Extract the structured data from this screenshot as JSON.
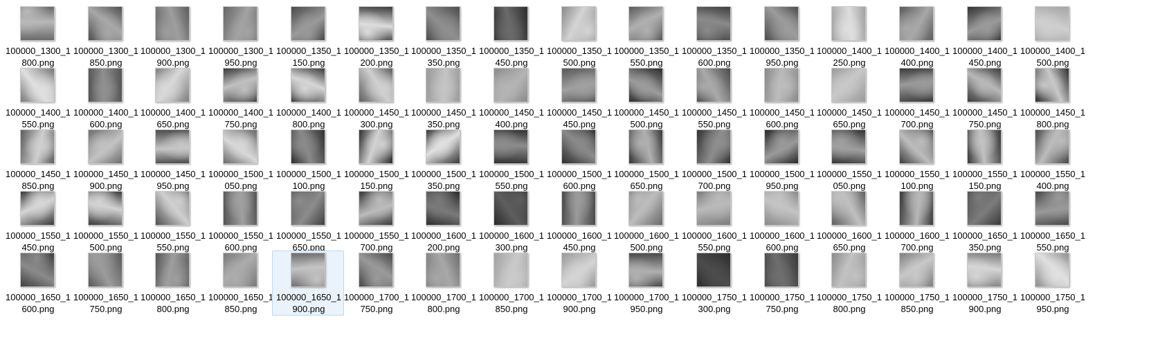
{
  "folder": {
    "view": "Large icons",
    "selected_file": "100000_1650_1900.png",
    "rows": [
      [
        {
          "line1": "100000_1300_1",
          "line2": "800.png",
          "icon": "image-thumbnail",
          "tone": [
            "#6a6a6a",
            "#b9b9b9"
          ]
        },
        {
          "line1": "100000_1300_1",
          "line2": "850.png",
          "icon": "image-thumbnail",
          "tone": [
            "#505050",
            "#a8a8a8"
          ]
        },
        {
          "line1": "100000_1300_1",
          "line2": "900.png",
          "icon": "image-thumbnail",
          "tone": [
            "#5c5c5c",
            "#9e9e9e"
          ]
        },
        {
          "line1": "100000_1300_1",
          "line2": "950.png",
          "icon": "image-thumbnail",
          "tone": [
            "#666666",
            "#a3a3a3"
          ]
        },
        {
          "line1": "100000_1350_1",
          "line2": "150.png",
          "icon": "image-thumbnail",
          "tone": [
            "#4a4a4a",
            "#9a9a9a"
          ]
        },
        {
          "line1": "100000_1350_1",
          "line2": "200.png",
          "icon": "image-thumbnail",
          "tone": [
            "#3c3c3c",
            "#dcdcdc"
          ]
        },
        {
          "line1": "100000_1350_1",
          "line2": "350.png",
          "icon": "image-thumbnail",
          "tone": [
            "#4d4d4d",
            "#8f8f8f"
          ]
        },
        {
          "line1": "100000_1350_1",
          "line2": "450.png",
          "icon": "image-thumbnail",
          "tone": [
            "#2e2e2e",
            "#6a6a6a"
          ]
        },
        {
          "line1": "100000_1350_1",
          "line2": "500.png",
          "icon": "image-thumbnail",
          "tone": [
            "#8a8a8a",
            "#d4d4d4"
          ]
        },
        {
          "line1": "100000_1350_1",
          "line2": "550.png",
          "icon": "image-thumbnail",
          "tone": [
            "#5a5a5a",
            "#b0b0b0"
          ]
        },
        {
          "line1": "100000_1350_1",
          "line2": "600.png",
          "icon": "image-thumbnail",
          "tone": [
            "#404040",
            "#8a8a8a"
          ]
        },
        {
          "line1": "100000_1350_1",
          "line2": "950.png",
          "icon": "image-thumbnail",
          "tone": [
            "#4e4e4e",
            "#9c9c9c"
          ]
        },
        {
          "line1": "100000_1400_1",
          "line2": "250.png",
          "icon": "image-thumbnail",
          "tone": [
            "#a0a0a0",
            "#dedede"
          ]
        },
        {
          "line1": "100000_1400_1",
          "line2": "400.png",
          "icon": "image-thumbnail",
          "tone": [
            "#5a5a5a",
            "#a8a8a8"
          ]
        },
        {
          "line1": "100000_1400_1",
          "line2": "450.png",
          "icon": "image-thumbnail",
          "tone": [
            "#333333",
            "#9a9a9a"
          ]
        },
        {
          "line1": "100000_1400_1",
          "line2": "500.png",
          "icon": "image-thumbnail",
          "tone": [
            "#a6a6a6",
            "#cfcfcf"
          ]
        }
      ],
      [
        {
          "line1": "100000_1400_1",
          "line2": "550.png",
          "icon": "image-thumbnail",
          "tone": [
            "#7a7a7a",
            "#e0e0e0"
          ]
        },
        {
          "line1": "100000_1400_1",
          "line2": "600.png",
          "icon": "image-thumbnail",
          "tone": [
            "#555555",
            "#909090"
          ]
        },
        {
          "line1": "100000_1400_1",
          "line2": "650.png",
          "icon": "image-thumbnail",
          "tone": [
            "#808080",
            "#d8d8d8"
          ]
        },
        {
          "line1": "100000_1400_1",
          "line2": "750.png",
          "icon": "image-thumbnail",
          "tone": [
            "#3a3a3a",
            "#c0c0c0"
          ]
        },
        {
          "line1": "100000_1400_1",
          "line2": "800.png",
          "icon": "image-thumbnail",
          "tone": [
            "#3e3e3e",
            "#d6d6d6"
          ]
        },
        {
          "line1": "100000_1450_1",
          "line2": "300.png",
          "icon": "image-thumbnail",
          "tone": [
            "#606060",
            "#d0d0d0"
          ]
        },
        {
          "line1": "100000_1450_1",
          "line2": "350.png",
          "icon": "image-thumbnail",
          "tone": [
            "#9a9a9a",
            "#c4c4c4"
          ]
        },
        {
          "line1": "100000_1450_1",
          "line2": "400.png",
          "icon": "image-thumbnail",
          "tone": [
            "#8c8c8c",
            "#b4b4b4"
          ]
        },
        {
          "line1": "100000_1450_1",
          "line2": "450.png",
          "icon": "image-thumbnail",
          "tone": [
            "#5a5a5a",
            "#a0a0a0"
          ]
        },
        {
          "line1": "100000_1450_1",
          "line2": "500.png",
          "icon": "image-thumbnail",
          "tone": [
            "#2c2c2c",
            "#9c9c9c"
          ]
        },
        {
          "line1": "100000_1450_1",
          "line2": "550.png",
          "icon": "image-thumbnail",
          "tone": [
            "#4a4a4a",
            "#aaaaaa"
          ]
        },
        {
          "line1": "100000_1450_1",
          "line2": "600.png",
          "icon": "image-thumbnail",
          "tone": [
            "#8a8a8a",
            "#bcbcbc"
          ]
        },
        {
          "line1": "100000_1450_1",
          "line2": "650.png",
          "icon": "image-thumbnail",
          "tone": [
            "#9a9a9a",
            "#c8c8c8"
          ]
        },
        {
          "line1": "100000_1450_1",
          "line2": "700.png",
          "icon": "image-thumbnail",
          "tone": [
            "#3a3a3a",
            "#9a9a9a"
          ]
        },
        {
          "line1": "100000_1450_1",
          "line2": "750.png",
          "icon": "image-thumbnail",
          "tone": [
            "#3c3c3c",
            "#b8b8b8"
          ]
        },
        {
          "line1": "100000_1450_1",
          "line2": "800.png",
          "icon": "image-thumbnail",
          "tone": [
            "#303030",
            "#c8c8c8"
          ]
        }
      ],
      [
        {
          "line1": "100000_1450_1",
          "line2": "850.png",
          "icon": "image-thumbnail",
          "tone": [
            "#5e5e5e",
            "#cfcfcf"
          ]
        },
        {
          "line1": "100000_1450_1",
          "line2": "900.png",
          "icon": "image-thumbnail",
          "tone": [
            "#6e6e6e",
            "#c2c2c2"
          ]
        },
        {
          "line1": "100000_1450_1",
          "line2": "950.png",
          "icon": "image-thumbnail",
          "tone": [
            "#4c4c4c",
            "#c6c6c6"
          ]
        },
        {
          "line1": "100000_1500_1",
          "line2": "050.png",
          "icon": "image-thumbnail",
          "tone": [
            "#6a6a6a",
            "#d8d8d8"
          ]
        },
        {
          "line1": "100000_1500_1",
          "line2": "100.png",
          "icon": "image-thumbnail",
          "tone": [
            "#303030",
            "#8a8a8a"
          ]
        },
        {
          "line1": "100000_1500_1",
          "line2": "150.png",
          "icon": "image-thumbnail",
          "tone": [
            "#2e2e2e",
            "#d2d2d2"
          ]
        },
        {
          "line1": "100000_1500_1",
          "line2": "350.png",
          "icon": "image-thumbnail",
          "tone": [
            "#3a3a3a",
            "#e0e0e0"
          ]
        },
        {
          "line1": "100000_1500_1",
          "line2": "550.png",
          "icon": "image-thumbnail",
          "tone": [
            "#333333",
            "#8c8c8c"
          ]
        },
        {
          "line1": "100000_1500_1",
          "line2": "600.png",
          "icon": "image-thumbnail",
          "tone": [
            "#303030",
            "#8a8a8a"
          ]
        },
        {
          "line1": "100000_1500_1",
          "line2": "650.png",
          "icon": "image-thumbnail",
          "tone": [
            "#3a3a3a",
            "#b0b0b0"
          ]
        },
        {
          "line1": "100000_1500_1",
          "line2": "700.png",
          "icon": "image-thumbnail",
          "tone": [
            "#333333",
            "#8e8e8e"
          ]
        },
        {
          "line1": "100000_1500_1",
          "line2": "950.png",
          "icon": "image-thumbnail",
          "tone": [
            "#2a2a2a",
            "#9a9a9a"
          ]
        },
        {
          "line1": "100000_1550_1",
          "line2": "050.png",
          "icon": "image-thumbnail",
          "tone": [
            "#363636",
            "#a0a0a0"
          ]
        },
        {
          "line1": "100000_1550_1",
          "line2": "100.png",
          "icon": "image-thumbnail",
          "tone": [
            "#3e3e3e",
            "#bdbdbd"
          ]
        },
        {
          "line1": "100000_1550_1",
          "line2": "150.png",
          "icon": "image-thumbnail",
          "tone": [
            "#383838",
            "#c2c2c2"
          ]
        },
        {
          "line1": "100000_1550_1",
          "line2": "400.png",
          "icon": "image-thumbnail",
          "tone": [
            "#4a4a4a",
            "#bcbcbc"
          ]
        }
      ],
      [
        {
          "line1": "100000_1550_1",
          "line2": "450.png",
          "icon": "image-thumbnail",
          "tone": [
            "#3a3a3a",
            "#d6d6d6"
          ]
        },
        {
          "line1": "100000_1550_1",
          "line2": "500.png",
          "icon": "image-thumbnail",
          "tone": [
            "#3c3c3c",
            "#d2d2d2"
          ]
        },
        {
          "line1": "100000_1550_1",
          "line2": "550.png",
          "icon": "image-thumbnail",
          "tone": [
            "#505050",
            "#d0d0d0"
          ]
        },
        {
          "line1": "100000_1550_1",
          "line2": "600.png",
          "icon": "image-thumbnail",
          "tone": [
            "#555555",
            "#a0a0a0"
          ]
        },
        {
          "line1": "100000_1550_1",
          "line2": "650.png",
          "icon": "image-thumbnail",
          "tone": [
            "#404040",
            "#8c8c8c"
          ]
        },
        {
          "line1": "100000_1550_1",
          "line2": "700.png",
          "icon": "image-thumbnail",
          "tone": [
            "#3a3a3a",
            "#bcbcbc"
          ]
        },
        {
          "line1": "100000_1600_1",
          "line2": "200.png",
          "icon": "image-thumbnail",
          "tone": [
            "#2e2e2e",
            "#7a7a7a"
          ]
        },
        {
          "line1": "100000_1600_1",
          "line2": "300.png",
          "icon": "image-thumbnail",
          "tone": [
            "#2a2a2a",
            "#5e5e5e"
          ]
        },
        {
          "line1": "100000_1600_1",
          "line2": "450.png",
          "icon": "image-thumbnail",
          "tone": [
            "#4a4a4a",
            "#9a9a9a"
          ]
        },
        {
          "line1": "100000_1600_1",
          "line2": "500.png",
          "icon": "image-thumbnail",
          "tone": [
            "#6a6a6a",
            "#bdbdbd"
          ]
        },
        {
          "line1": "100000_1600_1",
          "line2": "550.png",
          "icon": "image-thumbnail",
          "tone": [
            "#7c7c7c",
            "#bababa"
          ]
        },
        {
          "line1": "100000_1600_1",
          "line2": "600.png",
          "icon": "image-thumbnail",
          "tone": [
            "#8a8a8a",
            "#c4c4c4"
          ]
        },
        {
          "line1": "100000_1600_1",
          "line2": "650.png",
          "icon": "image-thumbnail",
          "tone": [
            "#606060",
            "#c0c0c0"
          ]
        },
        {
          "line1": "100000_1600_1",
          "line2": "700.png",
          "icon": "image-thumbnail",
          "tone": [
            "#3a3a3a",
            "#b6b6b6"
          ]
        },
        {
          "line1": "100000_1650_1",
          "line2": "350.png",
          "icon": "image-thumbnail",
          "tone": [
            "#3a3a3a",
            "#7c7c7c"
          ]
        },
        {
          "line1": "100000_1650_1",
          "line2": "550.png",
          "icon": "image-thumbnail",
          "tone": [
            "#4a4a4a",
            "#9a9a9a"
          ]
        }
      ],
      [
        {
          "line1": "100000_1650_1",
          "line2": "600.png",
          "icon": "image-thumbnail",
          "tone": [
            "#404040",
            "#8a8a8a"
          ]
        },
        {
          "line1": "100000_1650_1",
          "line2": "750.png",
          "icon": "image-thumbnail",
          "tone": [
            "#5a5a5a",
            "#9c9c9c"
          ]
        },
        {
          "line1": "100000_1650_1",
          "line2": "800.png",
          "icon": "image-thumbnail",
          "tone": [
            "#555555",
            "#9e9e9e"
          ]
        },
        {
          "line1": "100000_1650_1",
          "line2": "850.png",
          "icon": "image-thumbnail",
          "tone": [
            "#7a7a7a",
            "#acacac"
          ]
        },
        {
          "line1": "100000_1650_1",
          "line2": "900.png",
          "icon": "image-thumbnail",
          "tone": [
            "#6a6a6a",
            "#c4c4c4"
          ]
        },
        {
          "line1": "100000_1700_1",
          "line2": "750.png",
          "icon": "image-thumbnail",
          "tone": [
            "#4a4a4a",
            "#9a9a9a"
          ]
        },
        {
          "line1": "100000_1700_1",
          "line2": "800.png",
          "icon": "image-thumbnail",
          "tone": [
            "#6e6e6e",
            "#a8a8a8"
          ]
        },
        {
          "line1": "100000_1700_1",
          "line2": "850.png",
          "icon": "image-thumbnail",
          "tone": [
            "#a2a2a2",
            "#cacaca"
          ]
        },
        {
          "line1": "100000_1700_1",
          "line2": "900.png",
          "icon": "image-thumbnail",
          "tone": [
            "#9a9a9a",
            "#d4d4d4"
          ]
        },
        {
          "line1": "100000_1700_1",
          "line2": "950.png",
          "icon": "image-thumbnail",
          "tone": [
            "#4a4a4a",
            "#b0b0b0"
          ]
        },
        {
          "line1": "100000_1750_1",
          "line2": "300.png",
          "icon": "image-thumbnail",
          "tone": [
            "#2e2e2e",
            "#4c4c4c"
          ]
        },
        {
          "line1": "100000_1750_1",
          "line2": "750.png",
          "icon": "image-thumbnail",
          "tone": [
            "#3a3a3a",
            "#6e6e6e"
          ]
        },
        {
          "line1": "100000_1750_1",
          "line2": "800.png",
          "icon": "image-thumbnail",
          "tone": [
            "#8a8a8a",
            "#c2c2c2"
          ]
        },
        {
          "line1": "100000_1750_1",
          "line2": "850.png",
          "icon": "image-thumbnail",
          "tone": [
            "#808080",
            "#c8c8c8"
          ]
        },
        {
          "line1": "100000_1750_1",
          "line2": "900.png",
          "icon": "image-thumbnail",
          "tone": [
            "#7a7a7a",
            "#d6d6d6"
          ]
        },
        {
          "line1": "100000_1750_1",
          "line2": "950.png",
          "icon": "image-thumbnail",
          "tone": [
            "#909090",
            "#e0e0e0"
          ]
        }
      ]
    ],
    "selection": {
      "row": 4,
      "col": 4
    },
    "colors": {
      "background": "#ffffff",
      "selection_fill": "#eaf3fc",
      "selection_border": "#bcd8f2",
      "text": "#000000"
    }
  }
}
